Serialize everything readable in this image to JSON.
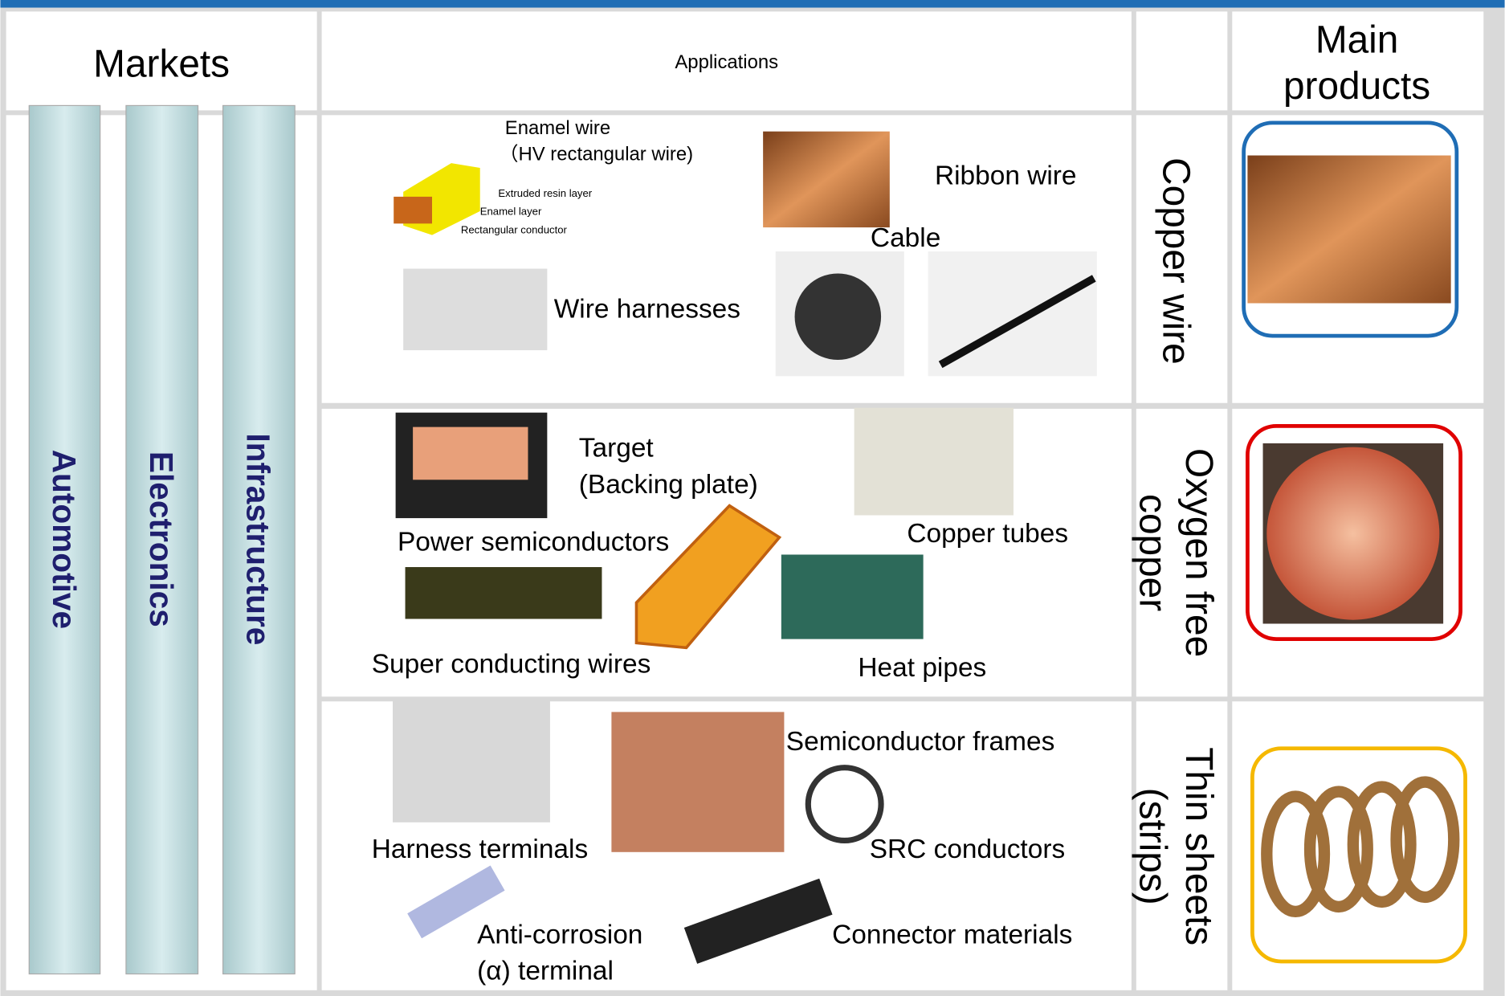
{
  "header": {
    "markets": "Markets",
    "applications": "Applications",
    "main_products": [
      "Main",
      "products"
    ]
  },
  "markets": [
    "Automotive",
    "Electronics",
    "Infrastructure"
  ],
  "rows": [
    {
      "product": [
        "Copper wire"
      ],
      "applications": [
        "Enamel wire",
        "（HV rectangular wire)",
        "Ribbon wire",
        "Cable",
        "Wire harnesses"
      ],
      "annotations": [
        "Extruded resin layer",
        "Enamel layer",
        "Rectangular conductor"
      ]
    },
    {
      "product": [
        "Oxygen free",
        "copper"
      ],
      "applications": [
        "Target",
        "(Backing plate)",
        "Copper tubes",
        "Power semiconductors",
        "Super conducting wires",
        "Heat pipes"
      ]
    },
    {
      "product": [
        "Thin sheets",
        "(strips)"
      ],
      "applications": [
        "Semiconductor frames",
        "Harness terminals",
        "SRC conductors",
        "Anti-corrosion",
        "(α) terminal",
        "Connector materials"
      ]
    }
  ]
}
